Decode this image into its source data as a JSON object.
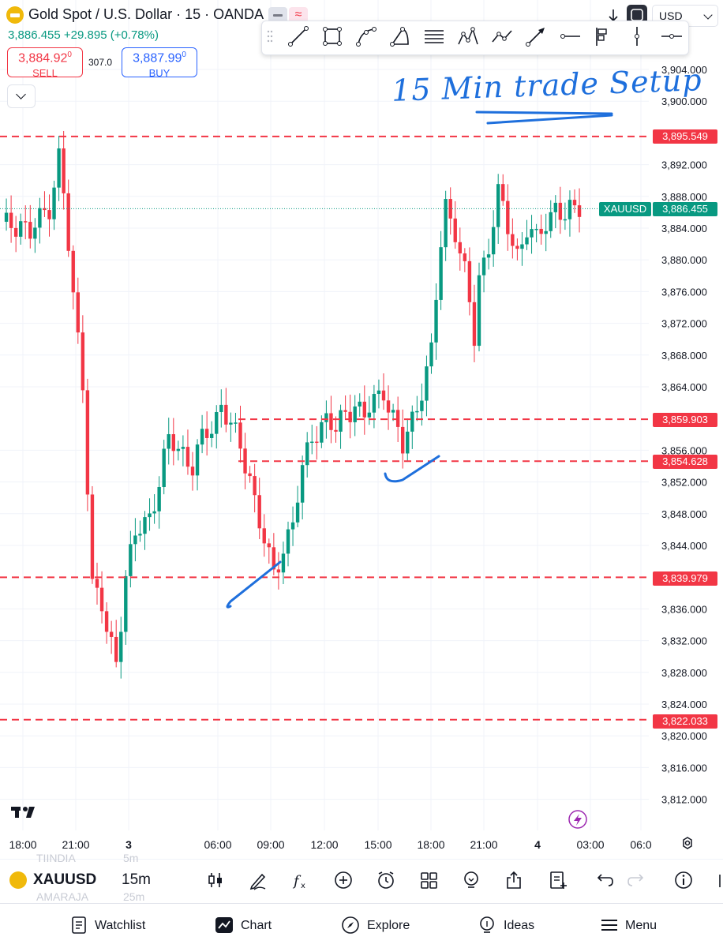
{
  "header": {
    "title": "Gold Spot / U.S. Dollar · 15 · OANDA",
    "price_line": "3,886.455 +29.895 (+0.78%)",
    "sell_price": "3,884.92",
    "sell_price_sup": "0",
    "sell_label": "SELL",
    "spread": "307.0",
    "buy_price": "3,887.99",
    "buy_price_sup": "0",
    "buy_label": "BUY",
    "currency": "USD"
  },
  "toolbar": {
    "icons": [
      "drag-grip-icon",
      "trend-line-icon",
      "rectangle-icon",
      "path-icon",
      "arc-icon",
      "fib-retracement-icon",
      "pattern-icon",
      "polyline-icon",
      "arrow-icon",
      "horizontal-ray-icon",
      "long-position-icon",
      "vertical-line-icon",
      "cross-line-icon"
    ]
  },
  "chart_data": {
    "type": "candlestick",
    "symbol": "XAUUSD",
    "interval": "15m",
    "y_axis_ticks": [
      "3,904.000",
      "3,900.000",
      "3,892.000",
      "3,888.000",
      "3,884.000",
      "3,880.000",
      "3,876.000",
      "3,872.000",
      "3,868.000",
      "3,864.000",
      "3,856.000",
      "3,852.000",
      "3,848.000",
      "3,844.000",
      "3,836.000",
      "3,832.000",
      "3,828.000",
      "3,824.000",
      "3,820.000",
      "3,816.000",
      "3,812.000"
    ],
    "x_axis_ticks": [
      "18:00",
      "21:00",
      "3",
      "06:00",
      "09:00",
      "12:00",
      "15:00",
      "18:00",
      "21:00",
      "4",
      "03:00",
      "06:0"
    ],
    "current_price": {
      "label": "XAUUSD",
      "value": "3,886.455"
    },
    "horizontal_levels": [
      {
        "value": "3,895.549"
      },
      {
        "value": "3,859.903"
      },
      {
        "value": "3,854.628"
      },
      {
        "value": "3,839.979"
      },
      {
        "value": "3,822.033"
      }
    ],
    "annotation": "15 Min trade Setup",
    "colors": {
      "up": "#089981",
      "down": "#f23645",
      "level": "#f23645",
      "drawing": "#1e6fdc"
    }
  },
  "bottom_bar": {
    "symbol": "XAUUSD",
    "interval": "15m",
    "ghost_top_name": "TIINDIA",
    "ghost_top_interval": "5m",
    "ghost_bottom_name": "AMARAJA",
    "ghost_bottom_interval": "25m",
    "icons": [
      "candles-icon",
      "draw-icon",
      "indicators-icon",
      "add-icon",
      "alert-icon",
      "layout-icon",
      "ideas-bulb-icon",
      "share-icon",
      "watchlist-add-icon",
      "undo-icon",
      "redo-icon",
      "info-icon"
    ]
  },
  "nav": {
    "watchlist": "Watchlist",
    "chart": "Chart",
    "explore": "Explore",
    "ideas": "Ideas",
    "menu": "Menu"
  }
}
